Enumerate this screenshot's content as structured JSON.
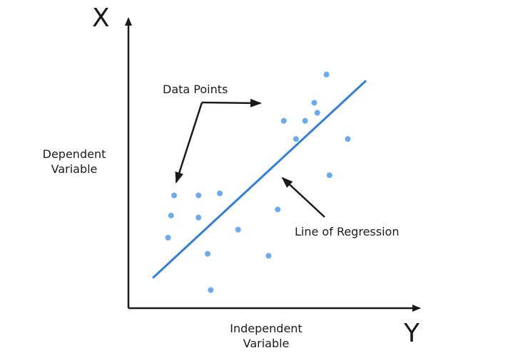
{
  "labels": {
    "y_axis_letter": "X",
    "x_axis_letter": "Y",
    "y_axis_title_line1": "Dependent",
    "y_axis_title_line2": "Variable",
    "x_axis_title_line1": "Independent",
    "x_axis_title_line2": "Variable",
    "data_points": "Data Points",
    "line_of_regression": "Line of Regression"
  },
  "colors": {
    "point": "#6aaaf0",
    "regression_line": "#2f7fdc",
    "axis": "#1a1a1a",
    "arrow": "#1a1a1a"
  },
  "chart_data": {
    "type": "scatter",
    "points": [
      [
        0.13,
        0.35
      ],
      [
        0.14,
        0.46
      ],
      [
        0.15,
        0.56
      ],
      [
        0.23,
        0.56
      ],
      [
        0.23,
        0.45
      ],
      [
        0.26,
        0.27
      ],
      [
        0.27,
        0.09
      ],
      [
        0.3,
        0.57
      ],
      [
        0.36,
        0.39
      ],
      [
        0.46,
        0.26
      ],
      [
        0.49,
        0.49
      ],
      [
        0.51,
        0.93
      ],
      [
        0.55,
        0.84
      ],
      [
        0.58,
        0.93
      ],
      [
        0.61,
        1.02
      ],
      [
        0.62,
        0.97
      ],
      [
        0.65,
        1.16
      ],
      [
        0.66,
        0.66
      ],
      [
        0.72,
        0.84
      ]
    ],
    "regression_line": [
      [
        0.08,
        0.15
      ],
      [
        0.78,
        1.13
      ]
    ]
  }
}
